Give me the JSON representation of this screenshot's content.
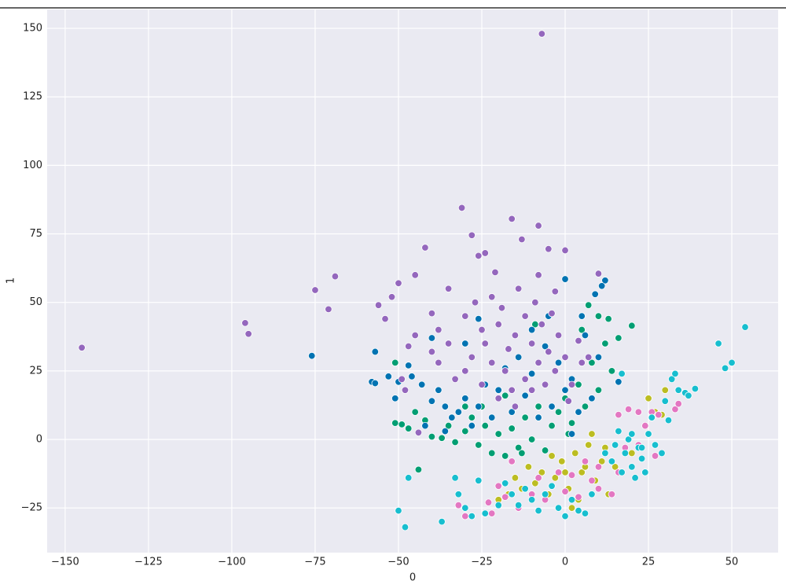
{
  "chart_data": {
    "type": "scatter",
    "xlabel": "0",
    "ylabel": "1",
    "grid": true,
    "xlim": [
      -155.4,
      63.9
    ],
    "ylim": [
      -41.3,
      156.9
    ],
    "xticks": [
      {
        "value": -150,
        "label": "−150"
      },
      {
        "value": -125,
        "label": "−125"
      },
      {
        "value": -100,
        "label": "−100"
      },
      {
        "value": -75,
        "label": "−75"
      },
      {
        "value": -50,
        "label": "−50"
      },
      {
        "value": -25,
        "label": "−25"
      },
      0,
      25,
      50
    ],
    "yticks": [
      {
        "value": -25,
        "label": "−25"
      },
      0,
      25,
      50,
      75,
      100,
      125,
      150
    ],
    "series": [
      {
        "color": "#029e73",
        "x": [
          -44,
          -51,
          -49,
          -47,
          -45,
          -42,
          -51,
          -40,
          -37,
          -35,
          -33,
          -30,
          -28,
          -26,
          -24,
          -22,
          -20,
          -18,
          -16,
          -14,
          -12,
          -10,
          -8,
          -6,
          -4,
          -2,
          0,
          2,
          4,
          6,
          8,
          10,
          12,
          14,
          16,
          20,
          7,
          10,
          13,
          -25,
          -18,
          -30,
          -13,
          1,
          5,
          -9
        ],
        "y": [
          -11,
          6,
          5.5,
          4,
          10,
          7,
          28,
          1,
          0.5,
          5,
          -1,
          3,
          8,
          -2,
          5,
          -5,
          2,
          -6,
          4,
          -3,
          8,
          0,
          12,
          -4,
          5,
          10,
          15,
          6,
          20,
          12,
          28,
          18,
          35,
          25,
          37,
          41.5,
          49,
          45,
          44,
          12,
          16,
          12,
          -5,
          2,
          40,
          42
        ]
      },
      {
        "color": "#0173b2",
        "x": [
          -76,
          -58,
          -57,
          -57,
          -53,
          -51,
          -50,
          -47,
          -46,
          -43,
          -40,
          -38,
          -36,
          -34,
          -32,
          -30,
          -28,
          -26,
          -24,
          -22,
          -20,
          -18,
          -16,
          -14,
          -12,
          -10,
          -8,
          -6,
          -4,
          -2,
          0,
          2,
          4,
          6,
          8,
          10,
          12,
          11,
          0,
          9,
          -5,
          5,
          -10,
          -26,
          -30,
          -42,
          -36,
          16,
          2,
          -40
        ],
        "y": [
          30.5,
          21,
          20.5,
          32,
          23,
          15,
          21,
          27,
          23,
          20,
          14,
          18,
          12,
          8,
          10,
          15,
          5,
          12,
          20,
          8,
          18,
          26,
          10,
          30,
          16,
          24,
          8,
          34,
          12,
          28,
          18,
          22,
          10,
          38,
          15,
          30,
          58,
          56,
          58.5,
          53,
          45,
          45,
          40,
          44,
          35,
          5,
          3,
          21,
          2,
          37
        ]
      },
      {
        "color": "#9467bd",
        "x": [
          -145,
          -96,
          -95,
          -75,
          -71,
          -69,
          -31,
          -16,
          -7,
          -8,
          -28,
          -13,
          -24,
          -5,
          0,
          -42,
          -26,
          -21,
          -50,
          -45,
          -56,
          -54,
          -52,
          -35,
          -8,
          10,
          -3,
          -40,
          -45,
          -47,
          -49,
          -48,
          -44,
          -38,
          -30,
          -25,
          -20,
          -15,
          -10,
          -5,
          0,
          5,
          -35,
          -28,
          -22,
          -18,
          -12,
          -8,
          -3,
          2,
          -25,
          -20,
          -15,
          -10,
          -30,
          -33,
          -17,
          -12,
          -7,
          -2,
          4,
          7,
          -27,
          -22,
          -14,
          -9,
          -4,
          -38,
          -40,
          -24,
          -19,
          -6,
          1,
          -16
        ],
        "y": [
          33.5,
          42.5,
          38.5,
          54.5,
          47.5,
          59.5,
          84.5,
          80.5,
          148,
          78,
          74.5,
          73,
          68,
          69.5,
          69,
          70,
          67,
          61,
          57,
          60,
          49,
          44,
          52,
          55,
          60,
          60.5,
          54,
          46,
          38,
          34,
          22,
          18,
          2.5,
          28,
          45,
          40,
          42,
          38,
          35,
          32,
          30,
          28,
          35,
          30,
          28,
          25,
          22,
          28,
          25,
          20,
          20,
          15,
          12,
          18,
          25,
          22,
          33,
          45,
          42,
          38,
          36,
          30,
          50,
          52,
          55,
          50,
          46,
          40,
          32,
          35,
          48,
          20,
          14,
          18
        ]
      },
      {
        "color": "#bcbd22",
        "x": [
          -15,
          -13,
          -11,
          -9,
          -7,
          -5,
          -3,
          -1,
          1,
          3,
          5,
          7,
          9,
          11,
          13,
          2,
          -17,
          15,
          8,
          25,
          30,
          29,
          27,
          20,
          6,
          0,
          -4,
          4,
          -20,
          12
        ],
        "y": [
          -14,
          -18,
          -10,
          -16,
          -12,
          -20,
          -14,
          -8,
          -18,
          -5,
          -12,
          -2,
          -15,
          -8,
          -20,
          -25,
          -20,
          -10,
          2,
          15,
          18,
          9,
          10,
          -5,
          -10,
          -12,
          -6,
          -22,
          -22,
          -3
        ]
      },
      {
        "color": "#e377c2",
        "x": [
          -32,
          -30,
          -26,
          -23,
          -22,
          -20,
          -18,
          -16,
          -14,
          -12,
          -10,
          -8,
          -6,
          -4,
          -2,
          0,
          2,
          4,
          6,
          8,
          10,
          12,
          14,
          16,
          18,
          16,
          19,
          22,
          26,
          28,
          33,
          34,
          27,
          22,
          24,
          10
        ],
        "y": [
          -24,
          -28,
          -15,
          -23,
          -27,
          -17,
          -21,
          -8,
          -25,
          -18,
          -20,
          -14,
          -22,
          -17,
          -12,
          -19,
          -13,
          -21,
          -8,
          -15,
          -18,
          -5,
          -20,
          -12,
          -3,
          9,
          11,
          10,
          10,
          9,
          11,
          13,
          -6,
          -2,
          5,
          -10
        ]
      },
      {
        "color": "#17becf",
        "x": [
          -50,
          -48,
          -47,
          -37,
          -33,
          -32,
          -30,
          -28,
          -26,
          -24,
          -20,
          -18,
          -16,
          -14,
          -12,
          -10,
          -8,
          -6,
          -4,
          -2,
          0,
          2,
          4,
          6,
          8,
          12,
          14,
          15,
          16,
          17,
          18,
          19,
          20,
          21,
          22,
          23,
          24,
          25,
          26,
          27,
          29,
          30,
          31,
          32,
          33,
          34,
          36,
          37,
          39,
          46,
          48,
          50,
          54,
          17,
          23,
          20
        ],
        "y": [
          -26,
          -32,
          -14,
          -30,
          -14,
          -20,
          -25,
          -28,
          -15,
          -27,
          -24,
          -16,
          -20,
          -24,
          -18,
          -22,
          -26,
          -20,
          -17,
          -25,
          -28,
          -22,
          -26,
          -27,
          -20,
          -5,
          -8,
          -2,
          3,
          -12,
          -5,
          0,
          -10,
          -14,
          -3,
          -7,
          -12,
          2,
          8,
          -2,
          -5,
          14,
          7,
          22,
          24,
          18,
          17,
          16,
          18.5,
          35,
          26,
          28,
          41,
          24,
          -3,
          2
        ]
      }
    ]
  }
}
